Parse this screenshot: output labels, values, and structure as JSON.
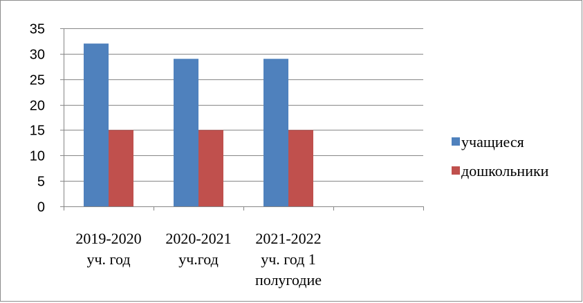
{
  "chart_data": {
    "type": "bar",
    "categories": [
      [
        "2019-2020",
        "уч. год"
      ],
      [
        "2020-2021",
        "уч.год"
      ],
      [
        "2021-2022",
        "уч. год 1",
        "полугодие"
      ],
      []
    ],
    "series": [
      {
        "name": "учащиеся",
        "color": "#4f81bd",
        "values": [
          32,
          29,
          29,
          null
        ]
      },
      {
        "name": "дошкольники",
        "color": "#c0504d",
        "values": [
          15,
          15,
          15,
          null
        ]
      }
    ],
    "ylim": [
      0,
      35
    ],
    "yticks": [
      0,
      5,
      10,
      15,
      20,
      25,
      30,
      35
    ],
    "grid": true,
    "legend": "right",
    "title": "",
    "xlabel": "",
    "ylabel": ""
  }
}
